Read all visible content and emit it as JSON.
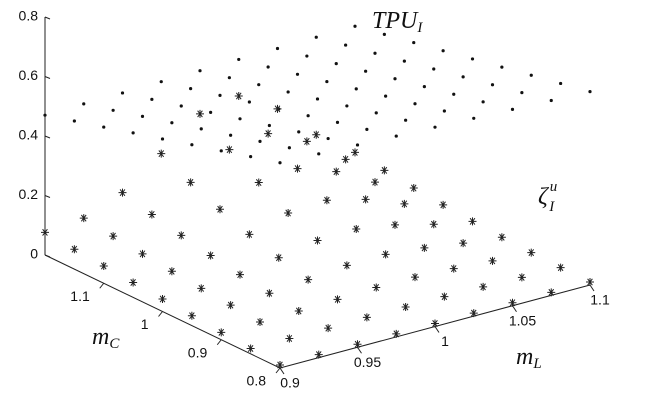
{
  "chart_data": {
    "type": "scatter3d",
    "xlabel": {
      "base": "m",
      "sub": "L"
    },
    "ylabel": {
      "base": "m",
      "sub": "C"
    },
    "x": [
      0.9,
      0.925,
      0.95,
      0.975,
      1.0,
      1.025,
      1.05,
      1.075,
      1.1
    ],
    "y": [
      0.8,
      0.85,
      0.9,
      0.95,
      1.0,
      1.05,
      1.1,
      1.15,
      1.2
    ],
    "xlim": [
      0.9,
      1.1
    ],
    "ylim": [
      0.8,
      1.2
    ],
    "zlim": [
      0,
      0.8
    ],
    "xticks": [
      0.9,
      0.95,
      1,
      1.05,
      1.1
    ],
    "yticks": [
      0.8,
      0.9,
      1,
      1.1
    ],
    "zticks": [
      0,
      0.2,
      0.4,
      0.6,
      0.8
    ],
    "series": [
      {
        "name": {
          "base": "TPU",
          "sub": "I"
        },
        "marker": "dot",
        "color": "#111111",
        "z": [
          [
            0.69,
            0.685,
            0.68,
            0.675,
            0.67,
            0.665,
            0.66,
            0.655,
            0.65
          ],
          [
            0.663,
            0.658,
            0.654,
            0.65,
            0.646,
            0.642,
            0.638,
            0.634,
            0.63
          ],
          [
            0.635,
            0.632,
            0.629,
            0.626,
            0.623,
            0.619,
            0.616,
            0.613,
            0.61
          ],
          [
            0.608,
            0.605,
            0.603,
            0.601,
            0.599,
            0.597,
            0.594,
            0.592,
            0.59
          ],
          [
            0.58,
            0.579,
            0.578,
            0.576,
            0.575,
            0.574,
            0.573,
            0.571,
            0.57
          ],
          [
            0.553,
            0.552,
            0.552,
            0.552,
            0.551,
            0.551,
            0.551,
            0.55,
            0.55
          ],
          [
            0.525,
            0.526,
            0.526,
            0.527,
            0.528,
            0.528,
            0.529,
            0.529,
            0.53
          ],
          [
            0.498,
            0.499,
            0.501,
            0.502,
            0.504,
            0.505,
            0.507,
            0.509,
            0.51
          ],
          [
            0.47,
            0.473,
            0.475,
            0.478,
            0.48,
            0.483,
            0.485,
            0.488,
            0.49
          ]
        ]
      },
      {
        "name": {
          "base": "ζ",
          "sub": "I",
          "sup": "u"
        },
        "marker": "asterisk",
        "color": "#222222",
        "z": [
          [
            0.01,
            0.01,
            0.01,
            0.01,
            0.01,
            0.01,
            0.01,
            0.01,
            0.01
          ],
          [
            0.018,
            0.017,
            0.017,
            0.018,
            0.018,
            0.018,
            0.016,
            0.013,
            0.011
          ],
          [
            0.025,
            0.025,
            0.027,
            0.031,
            0.036,
            0.036,
            0.03,
            0.021,
            0.014
          ],
          [
            0.033,
            0.034,
            0.039,
            0.05,
            0.063,
            0.065,
            0.052,
            0.033,
            0.018
          ],
          [
            0.042,
            0.043,
            0.054,
            0.076,
            0.099,
            0.103,
            0.082,
            0.049,
            0.024
          ],
          [
            0.05,
            0.053,
            0.071,
            0.107,
            0.144,
            0.152,
            0.12,
            0.07,
            0.032
          ],
          [
            0.058,
            0.064,
            0.091,
            0.144,
            0.199,
            0.211,
            0.166,
            0.096,
            0.041
          ],
          [
            0.067,
            0.076,
            0.114,
            0.187,
            0.262,
            0.281,
            0.22,
            0.125,
            0.053
          ],
          [
            0.076,
            0.089,
            0.14,
            0.236,
            0.335,
            0.36,
            0.282,
            0.16,
            0.066
          ]
        ]
      }
    ]
  }
}
